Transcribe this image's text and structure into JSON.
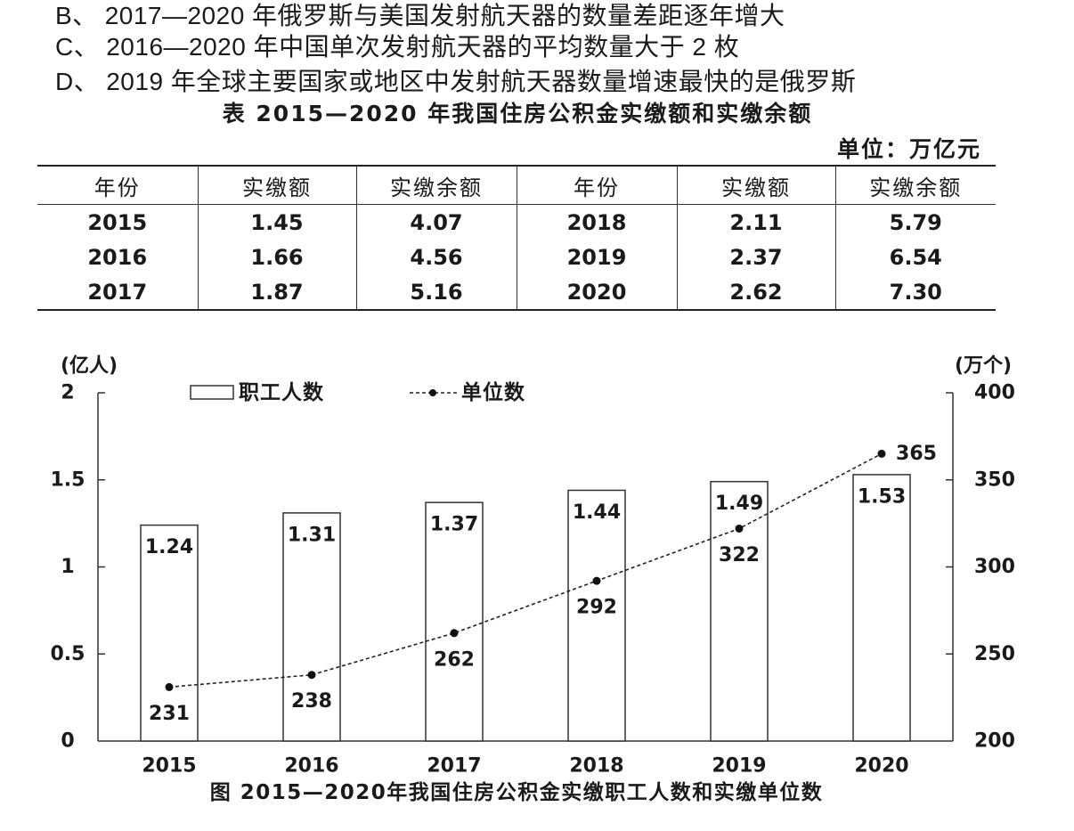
{
  "options": [
    {
      "label": "B、",
      "text": "2017—2020 年俄罗斯与美国发射航天器的数量差距逐年增大"
    },
    {
      "label": "C、",
      "text": "2016—2020 年中国单次发射航天器的平均数量大于 2 枚"
    },
    {
      "label": "D、",
      "text": "2019 年全球主要国家或地区中发射航天器数量增速最快的是俄罗斯"
    }
  ],
  "table": {
    "title": "表 2015—2020 年我国住房公积金实缴额和实缴余额",
    "unit": "单位：万亿元",
    "headers": [
      "年份",
      "实缴额",
      "实缴余额",
      "年份",
      "实缴额",
      "实缴余额"
    ],
    "rows": [
      [
        "2015",
        "1.45",
        "4.07",
        "2018",
        "2.11",
        "5.79"
      ],
      [
        "2016",
        "1.66",
        "4.56",
        "2019",
        "2.37",
        "6.54"
      ],
      [
        "2017",
        "1.87",
        "5.16",
        "2020",
        "2.62",
        "7.30"
      ]
    ]
  },
  "chart_data": {
    "type": "bar",
    "title": "图 2015—2020年我国住房公积金实缴职工人数和实缴单位数",
    "categories": [
      "2015",
      "2016",
      "2017",
      "2018",
      "2019",
      "2020"
    ],
    "series": [
      {
        "name": "职工人数",
        "type": "bar",
        "axis": "left",
        "values": [
          1.24,
          1.31,
          1.37,
          1.44,
          1.49,
          1.53
        ]
      },
      {
        "name": "单位数",
        "type": "line",
        "axis": "right",
        "values": [
          231,
          238,
          262,
          292,
          322,
          365
        ]
      }
    ],
    "y_left": {
      "label": "(亿人)",
      "range": [
        0,
        2
      ],
      "ticks": [
        0,
        0.5,
        1,
        1.5,
        2
      ]
    },
    "y_right": {
      "label": "(万个)",
      "range": [
        200,
        400
      ],
      "ticks": [
        200,
        250,
        300,
        350,
        400
      ]
    },
    "legend": "top-left",
    "grid": false,
    "data_labels": true
  }
}
